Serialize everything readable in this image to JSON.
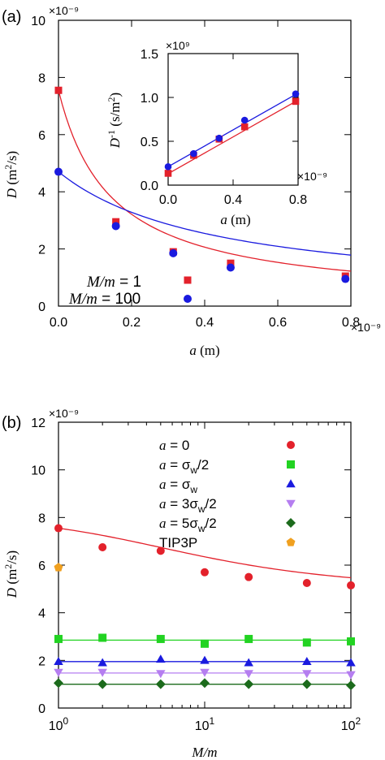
{
  "chart_data": [
    {
      "id": "a",
      "type": "scatter",
      "panel_label": "(a)",
      "xlabel": "a (m)",
      "ylabel": "D (m²/s)",
      "xlim": [
        0,
        0.8
      ],
      "ylim": [
        0,
        10
      ],
      "x_exponent": "×10⁻⁹",
      "y_exponent": "×10⁻⁹",
      "x_ticks": [
        "0.0",
        "0.2",
        "0.4",
        "0.6",
        "0.8"
      ],
      "y_ticks": [
        "0",
        "2",
        "4",
        "6",
        "8",
        "10"
      ],
      "legend_position": "bottom-left",
      "series": [
        {
          "name": "M/m = 1",
          "color": "#e3212b",
          "marker": "square",
          "x": [
            0,
            0.157,
            0.314,
            0.471,
            0.785
          ],
          "y": [
            7.55,
            2.95,
            1.9,
            1.5,
            1.05
          ],
          "fit_A": 7.55,
          "fit_b": 0.08,
          "fit_c": 6.92
        },
        {
          "name": "M/m = 100",
          "color": "#1a1adf",
          "marker": "circle",
          "x": [
            0,
            0.157,
            0.314,
            0.471,
            0.785
          ],
          "y": [
            4.7,
            2.8,
            1.85,
            1.35,
            0.95
          ],
          "fit_A": 4.7,
          "fit_b": 0.2,
          "fit_c": 2.3
        }
      ],
      "inset": {
        "xlabel": "a (m)",
        "ylabel": "D⁻¹ (s/m²)",
        "xlim": [
          0,
          0.8
        ],
        "ylim": [
          0,
          1.5
        ],
        "x_exponent": "×10⁻⁹",
        "y_exponent": "×10⁹",
        "x_ticks": [
          "0.0",
          "0.4",
          "0.8"
        ],
        "y_ticks": [
          "0.0",
          "0.5",
          "1.0",
          "1.5"
        ],
        "series": [
          {
            "color": "#e3212b",
            "marker": "square",
            "x": [
              0,
              0.157,
              0.314,
              0.471,
              0.785
            ],
            "y": [
              0.135,
              0.34,
              0.525,
              0.665,
              0.955
            ],
            "fit": [
              0.13,
              1.05
            ]
          },
          {
            "color": "#1a1adf",
            "marker": "circle",
            "x": [
              0,
              0.157,
              0.314,
              0.471,
              0.785
            ],
            "y": [
              0.21,
              0.36,
              0.535,
              0.74,
              1.04
            ],
            "fit": [
              0.21,
              1.05
            ]
          }
        ]
      }
    },
    {
      "id": "b",
      "type": "scatter",
      "panel_label": "(b)",
      "xlabel": "M/m",
      "ylabel": "D (m²/s)",
      "xscale": "log",
      "xlim": [
        1,
        100
      ],
      "ylim": [
        0,
        12
      ],
      "y_exponent": "×10⁻⁹",
      "x_ticks": [
        "10⁰",
        "10¹",
        "10²"
      ],
      "y_ticks": [
        "0",
        "2",
        "4",
        "6",
        "8",
        "10",
        "12"
      ],
      "legend_position": "top-right",
      "x": [
        1,
        2,
        5,
        10,
        20,
        50,
        100
      ],
      "series": [
        {
          "name": "a = 0",
          "color": "#e3212b",
          "marker": "circle",
          "y": [
            7.55,
            6.75,
            6.6,
            5.7,
            5.5,
            5.25,
            5.15
          ],
          "fit": "curve"
        },
        {
          "name": "a = σw/2",
          "color": "#22d322",
          "marker": "square",
          "y": [
            2.9,
            2.95,
            2.9,
            2.7,
            2.9,
            2.75,
            2.8
          ],
          "fit": "const",
          "fit_value": 2.85
        },
        {
          "name": "a = σw",
          "color": "#1a1adf",
          "marker": "triangle-up",
          "y": [
            1.95,
            1.9,
            2.05,
            2.0,
            1.9,
            1.95,
            1.9
          ],
          "fit": "const",
          "fit_value": 1.95
        },
        {
          "name": "a = 3σw/2",
          "color": "#b57ef0",
          "marker": "triangle-down",
          "y": [
            1.5,
            1.5,
            1.45,
            1.5,
            1.45,
            1.45,
            1.4
          ],
          "fit": "const",
          "fit_value": 1.47
        },
        {
          "name": "a = 5σw/2",
          "color": "#1c6b1c",
          "marker": "diamond",
          "y": [
            1.05,
            1.0,
            1.0,
            1.05,
            1.0,
            1.0,
            0.95
          ],
          "fit": "const",
          "fit_value": 1.0
        },
        {
          "name": "TIP3P",
          "color": "#f0a020",
          "marker": "pentagon",
          "x_override": [
            1
          ],
          "y": [
            5.9
          ],
          "fit": "none"
        }
      ]
    }
  ]
}
